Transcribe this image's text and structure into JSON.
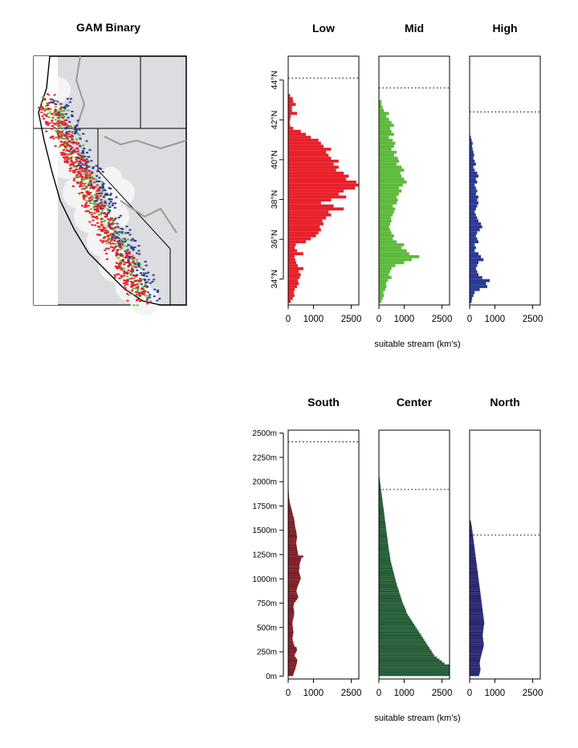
{
  "map": {
    "title": "GAM Binary"
  },
  "colors": {
    "low": "#e8202a",
    "mid": "#5dba3c",
    "high": "#2b3a94",
    "south": "#7e1d25",
    "center": "#245c36",
    "north": "#262670",
    "land": "#dcdde0",
    "buffer": "#f4f4f4",
    "border": "#999999"
  },
  "xlabel": "suitable stream (km's)",
  "chart_data": [
    {
      "type": "bar",
      "orientation": "horizontal",
      "title": "Low",
      "color_key": "low",
      "xlim": [
        0,
        2800
      ],
      "xticks": [
        0,
        1000,
        2500
      ],
      "ylim": [
        32.7,
        45.2
      ],
      "yticks": [
        "34°N",
        "36°N",
        "38°N",
        "40°N",
        "42°N",
        "44°N"
      ],
      "dotted_line": 44.1,
      "y_start": 32.8,
      "bin": 0.15,
      "values": [
        100,
        180,
        250,
        220,
        260,
        350,
        420,
        380,
        460,
        500,
        420,
        600,
        380,
        320,
        280,
        250,
        600,
        350,
        260,
        300,
        700,
        900,
        1100,
        1200,
        1300,
        1250,
        1400,
        1350,
        1500,
        1700,
        1600,
        2200,
        1800,
        1300,
        1700,
        2300,
        2000,
        2200,
        2650,
        2850,
        2700,
        2300,
        2400,
        2200,
        1900,
        2000,
        1800,
        2000,
        1700,
        1600,
        1500,
        1700,
        1400,
        1300,
        1200,
        900,
        700,
        500,
        200,
        80,
        60,
        80,
        100,
        350,
        150,
        150,
        300,
        200,
        180,
        80
      ]
    },
    {
      "type": "bar",
      "orientation": "horizontal",
      "title": "Mid",
      "color_key": "mid",
      "xlim": [
        0,
        2800
      ],
      "xticks": [
        0,
        1000,
        2500
      ],
      "ylim": [
        32.7,
        45.2
      ],
      "dotted_line": 43.6,
      "y_start": 32.8,
      "bin": 0.15,
      "values": [
        100,
        150,
        200,
        180,
        250,
        300,
        280,
        350,
        500,
        400,
        450,
        500,
        650,
        1000,
        1300,
        1600,
        1200,
        1100,
        900,
        1000,
        700,
        550,
        600,
        500,
        450,
        400,
        450,
        500,
        480,
        550,
        600,
        650,
        550,
        700,
        750,
        700,
        800,
        900,
        800,
        950,
        1100,
        1000,
        900,
        850,
        1000,
        900,
        700,
        800,
        750,
        600,
        700,
        500,
        600,
        650,
        550,
        400,
        600,
        500,
        450,
        600,
        500,
        400,
        300,
        400,
        200,
        150,
        100,
        100
      ]
    },
    {
      "type": "bar",
      "orientation": "horizontal",
      "title": "High",
      "color_key": "high",
      "xlim": [
        0,
        2800
      ],
      "xticks": [
        0,
        1000,
        2500
      ],
      "ylim": [
        32.7,
        45.2
      ],
      "dotted_line": 42.4,
      "y_start": 32.8,
      "bin": 0.15,
      "values": [
        80,
        100,
        150,
        200,
        400,
        700,
        650,
        800,
        500,
        350,
        300,
        250,
        300,
        350,
        550,
        450,
        350,
        200,
        250,
        200,
        350,
        300,
        250,
        300,
        400,
        500,
        450,
        350,
        300,
        250,
        200,
        250,
        300,
        350,
        300,
        350,
        250,
        300,
        250,
        200,
        300,
        250,
        350,
        300,
        200,
        150,
        250,
        200,
        150,
        180,
        150,
        120,
        100,
        120,
        80,
        50
      ]
    },
    {
      "type": "bar",
      "orientation": "horizontal",
      "title": "South",
      "color_key": "south",
      "xlim": [
        0,
        2800
      ],
      "xticks": [
        0,
        1000,
        2500
      ],
      "ylim": [
        -30,
        2530
      ],
      "yticks": [
        "0m",
        "250m",
        "500m",
        "750m",
        "1000m",
        "1250m",
        "1500m",
        "1750m",
        "2000m",
        "2250m",
        "2500m"
      ],
      "dotted_line": 2410,
      "y_start": 0,
      "bin": 20,
      "values": [
        200,
        220,
        250,
        280,
        300,
        320,
        340,
        360,
        350,
        300,
        250,
        280,
        320,
        350,
        330,
        250,
        220,
        200,
        180,
        170,
        180,
        200,
        210,
        200,
        190,
        180,
        170,
        170,
        180,
        200,
        220,
        230,
        240,
        230,
        220,
        210,
        220,
        240,
        300,
        350,
        400,
        380,
        350,
        330,
        340,
        360,
        380,
        420,
        450,
        480,
        500,
        480,
        450,
        430,
        430,
        450,
        450,
        450,
        470,
        500,
        520,
        600,
        400,
        380,
        370,
        350,
        340,
        330,
        320,
        330,
        340,
        350,
        340,
        330,
        320,
        300,
        280,
        270,
        260,
        250,
        240,
        220,
        200,
        180,
        160,
        140,
        120,
        100,
        80,
        60,
        50,
        40,
        30,
        30,
        20,
        20,
        15,
        10,
        10,
        10
      ]
    },
    {
      "type": "bar",
      "orientation": "horizontal",
      "title": "Center",
      "color_key": "center",
      "xlim": [
        0,
        2800
      ],
      "xticks": [
        0,
        1000,
        2500
      ],
      "ylim": [
        -30,
        2530
      ],
      "dotted_line": 1920,
      "y_start": 0,
      "bin": 20,
      "values": [
        3000,
        3000,
        3000,
        3000,
        3000,
        3000,
        2600,
        2500,
        2400,
        2300,
        2200,
        2150,
        2100,
        2050,
        2000,
        1950,
        1900,
        1850,
        1800,
        1750,
        1700,
        1650,
        1600,
        1550,
        1500,
        1450,
        1400,
        1350,
        1300,
        1250,
        1200,
        1150,
        1100,
        1080,
        1050,
        1020,
        980,
        950,
        920,
        900,
        870,
        850,
        820,
        800,
        780,
        750,
        720,
        700,
        680,
        660,
        640,
        620,
        600,
        580,
        560,
        540,
        520,
        500,
        480,
        460,
        450,
        440,
        430,
        420,
        400,
        390,
        380,
        370,
        360,
        350,
        340,
        330,
        320,
        310,
        300,
        290,
        280,
        270,
        260,
        250,
        240,
        230,
        220,
        210,
        200,
        190,
        180,
        170,
        160,
        150,
        140,
        130,
        120,
        110,
        100,
        90,
        80,
        70,
        60,
        50,
        40,
        30,
        20,
        10
      ]
    },
    {
      "type": "bar",
      "orientation": "horizontal",
      "title": "North",
      "color_key": "north",
      "xlim": [
        0,
        2800
      ],
      "xticks": [
        0,
        1000,
        2500
      ],
      "ylim": [
        -30,
        2530
      ],
      "dotted_line": 1450,
      "y_start": 0,
      "bin": 20,
      "values": [
        380,
        400,
        420,
        430,
        420,
        410,
        400,
        410,
        420,
        440,
        460,
        480,
        500,
        520,
        540,
        560,
        560,
        550,
        540,
        530,
        520,
        520,
        530,
        540,
        550,
        560,
        570,
        580,
        570,
        560,
        550,
        540,
        530,
        520,
        510,
        500,
        490,
        480,
        470,
        460,
        450,
        440,
        430,
        420,
        410,
        400,
        390,
        380,
        370,
        360,
        350,
        340,
        330,
        320,
        310,
        300,
        290,
        280,
        270,
        260,
        250,
        240,
        230,
        220,
        210,
        200,
        190,
        180,
        170,
        160,
        150,
        140,
        130,
        120,
        110,
        100,
        90,
        80,
        60,
        50
      ]
    }
  ]
}
